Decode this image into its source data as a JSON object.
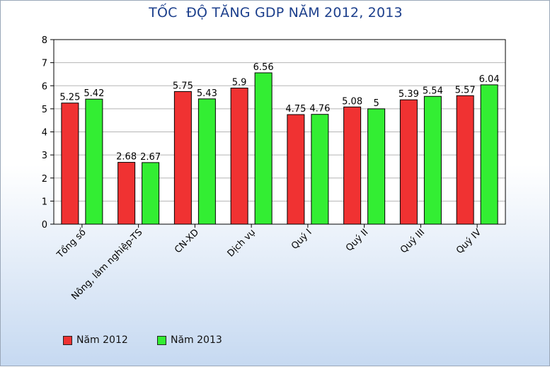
{
  "chart_data": {
    "type": "bar",
    "title": "TỐC  ĐỘ TĂNG GDP NĂM 2012, 2013",
    "categories": [
      "Tổng số",
      "Nông, lâm nghiệp-TS",
      "CN-XD",
      "Dịch vụ",
      "Quý I",
      "Quý II",
      "Quý III",
      "Quý IV"
    ],
    "series": [
      {
        "name": "Năm 2012",
        "color": "#f03232",
        "values": [
          5.25,
          2.68,
          5.75,
          5.9,
          4.75,
          5.08,
          5.39,
          5.57
        ],
        "labels": [
          "5.25",
          "2.68",
          "5.75",
          "5.9",
          "4.75",
          "5.08",
          "5.39",
          "5.57"
        ]
      },
      {
        "name": "Năm 2013",
        "color": "#33ee33",
        "values": [
          5.42,
          2.67,
          5.43,
          6.56,
          4.76,
          5,
          5.54,
          6.04
        ],
        "labels": [
          "5.42",
          "2.67",
          "5.43",
          "6.56",
          "4.76",
          "5",
          "5.54",
          "6.04"
        ]
      }
    ],
    "ylim": [
      0,
      8
    ],
    "yticks": [
      "0",
      "1",
      "2",
      "3",
      "4",
      "5",
      "6",
      "7",
      "8"
    ],
    "grid": true,
    "legend_position": "bottom-left"
  }
}
